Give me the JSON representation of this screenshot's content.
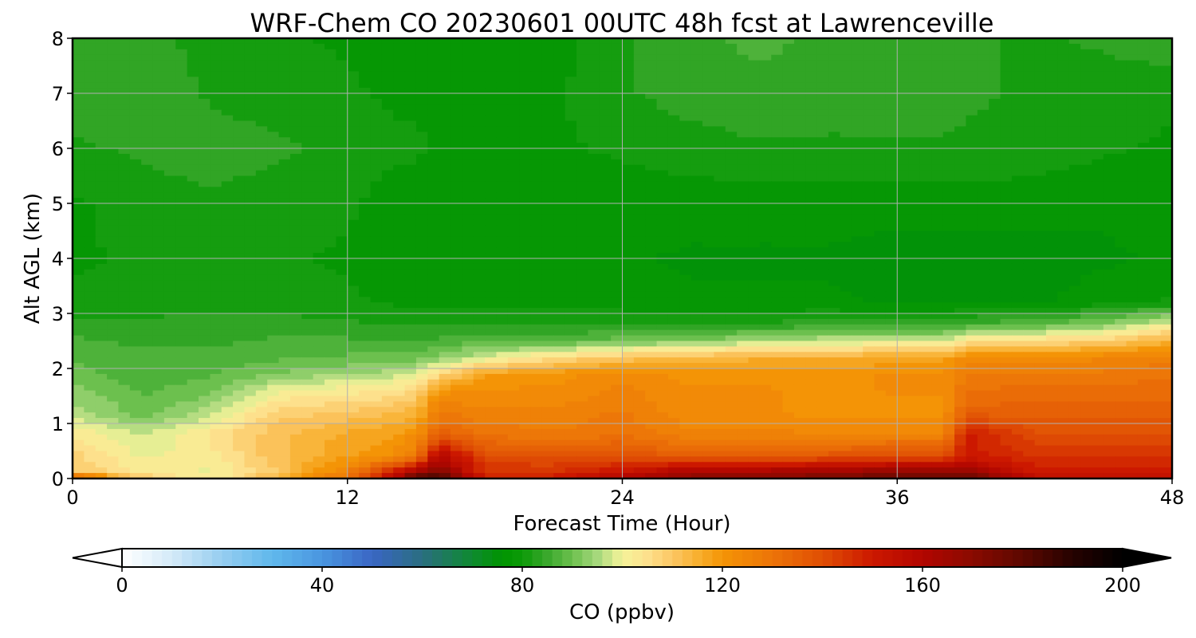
{
  "chart_data": {
    "type": "heatmap",
    "title": "WRF-Chem CO  20230601 00UTC 48h fcst at Lawrenceville",
    "xlabel": "Forecast Time (Hour)",
    "ylabel": "Alt AGL (km)",
    "xlim": [
      0,
      48
    ],
    "ylim": [
      0,
      8
    ],
    "x_ticks": [
      "0",
      "12",
      "24",
      "36",
      "48"
    ],
    "y_ticks": [
      "0",
      "1",
      "2",
      "3",
      "4",
      "5",
      "6",
      "7",
      "8"
    ],
    "grid": true,
    "x_hours": [
      0,
      3,
      6,
      9,
      12,
      14,
      15,
      16,
      18,
      21,
      24,
      27,
      30,
      33,
      36,
      38,
      39,
      42,
      45,
      48
    ],
    "y_km": [
      0,
      0.15,
      0.4,
      0.8,
      1.2,
      1.6,
      1.9,
      2.2,
      2.5,
      2.8,
      3.2,
      4,
      5,
      6,
      7,
      8
    ],
    "values_ppbv": [
      [
        135,
        110,
        100,
        115,
        130,
        160,
        185,
        185,
        150,
        150,
        160,
        170,
        170,
        175,
        180,
        180,
        180,
        155,
        155,
        155
      ],
      [
        110,
        102,
        100,
        110,
        125,
        145,
        160,
        170,
        145,
        145,
        150,
        160,
        160,
        162,
        165,
        165,
        165,
        150,
        150,
        150
      ],
      [
        108,
        100,
        102,
        112,
        118,
        122,
        128,
        160,
        140,
        138,
        140,
        135,
        135,
        138,
        140,
        140,
        150,
        145,
        145,
        145
      ],
      [
        103,
        97,
        104,
        112,
        116,
        118,
        122,
        135,
        130,
        128,
        130,
        125,
        125,
        125,
        125,
        125,
        150,
        140,
        140,
        140
      ],
      [
        96,
        90,
        96,
        108,
        110,
        112,
        114,
        128,
        125,
        125,
        128,
        122,
        122,
        120,
        120,
        120,
        135,
        135,
        135,
        135
      ],
      [
        93,
        88,
        90,
        100,
        102,
        104,
        106,
        120,
        122,
        122,
        125,
        122,
        122,
        120,
        122,
        122,
        130,
        132,
        132,
        132
      ],
      [
        90,
        86,
        88,
        92,
        94,
        96,
        98,
        106,
        118,
        120,
        124,
        120,
        120,
        120,
        122,
        122,
        128,
        128,
        128,
        130
      ],
      [
        88,
        86,
        86,
        88,
        89,
        90,
        90,
        92,
        98,
        105,
        110,
        112,
        115,
        115,
        116,
        116,
        122,
        122,
        124,
        126
      ],
      [
        86,
        85,
        85,
        86,
        86,
        86,
        86,
        86,
        88,
        88,
        90,
        92,
        95,
        97,
        98,
        98,
        104,
        106,
        108,
        115
      ],
      [
        84,
        83,
        84,
        84,
        83,
        82,
        82,
        82,
        82,
        82,
        82,
        82,
        83,
        84,
        84,
        84,
        86,
        88,
        92,
        100
      ],
      [
        80,
        81,
        81,
        81,
        80,
        79,
        79,
        78,
        78,
        78,
        78,
        77,
        77,
        77,
        76,
        76,
        76,
        76,
        78,
        80
      ],
      [
        79,
        80,
        81,
        80,
        79,
        78,
        78,
        78,
        77,
        77,
        77,
        76,
        76,
        76,
        75,
        75,
        75,
        75,
        76,
        77
      ],
      [
        79,
        81,
        82,
        81,
        80,
        78,
        78,
        78,
        78,
        78,
        78,
        78,
        78,
        78,
        78,
        78,
        78,
        78,
        77,
        78
      ],
      [
        82,
        83,
        84,
        83,
        82,
        80,
        80,
        79,
        79,
        79,
        80,
        81,
        82,
        82,
        82,
        82,
        82,
        81,
        80,
        79
      ],
      [
        84,
        85,
        82,
        81,
        80,
        79,
        79,
        78,
        78,
        79,
        82,
        84,
        85,
        84,
        84,
        84,
        83,
        82,
        81,
        80
      ],
      [
        83,
        84,
        81,
        80,
        79,
        78,
        78,
        77,
        77,
        78,
        82,
        85,
        86,
        85,
        84,
        84,
        83,
        82,
        83,
        85
      ]
    ],
    "colorbar": {
      "label": "CO  (ppbv)",
      "min": 0,
      "max": 200,
      "ticks": [
        "0",
        "40",
        "80",
        "120",
        "160",
        "200"
      ],
      "extend": "both",
      "anchors": [
        [
          0,
          "#ffffff"
        ],
        [
          10,
          "#d4eaf8"
        ],
        [
          20,
          "#96cdf0"
        ],
        [
          30,
          "#60b8ec"
        ],
        [
          40,
          "#4a96e0"
        ],
        [
          50,
          "#3a66c4"
        ],
        [
          60,
          "#2a6e80"
        ],
        [
          70,
          "#0e8a30"
        ],
        [
          76,
          "#009400"
        ],
        [
          80,
          "#0c9a08"
        ],
        [
          85,
          "#3aa82c"
        ],
        [
          90,
          "#6cc04e"
        ],
        [
          95,
          "#a6d87c"
        ],
        [
          100,
          "#f6f39a"
        ],
        [
          105,
          "#fde08c"
        ],
        [
          110,
          "#fcc764"
        ],
        [
          115,
          "#f8b030"
        ],
        [
          120,
          "#f49406"
        ],
        [
          130,
          "#ec7408"
        ],
        [
          140,
          "#e04e04"
        ],
        [
          150,
          "#cc1800"
        ],
        [
          160,
          "#b20600"
        ],
        [
          170,
          "#8a0a00"
        ],
        [
          180,
          "#5c0800"
        ],
        [
          190,
          "#260200"
        ],
        [
          200,
          "#000000"
        ]
      ]
    }
  }
}
